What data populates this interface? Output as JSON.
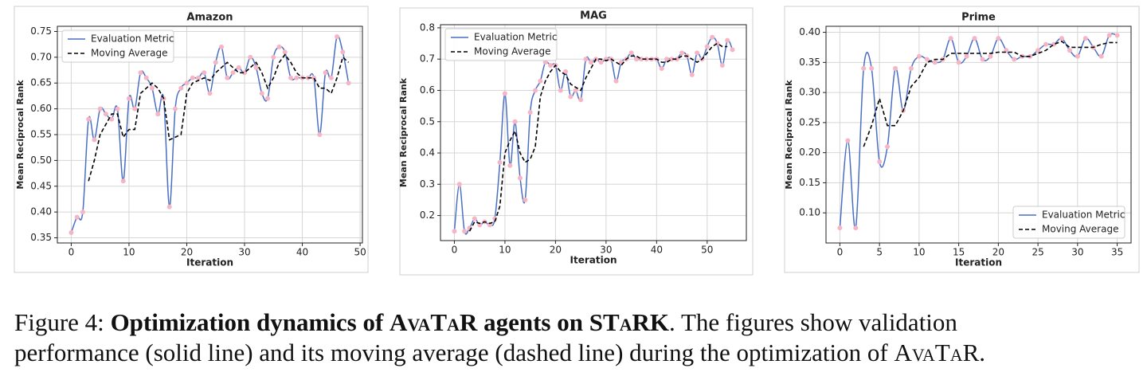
{
  "chart_data": [
    {
      "type": "line",
      "title": "Amazon",
      "xlabel": "Iteration",
      "ylabel": "Mean Reciprocal Rank",
      "x": [
        0,
        1,
        2,
        3,
        4,
        5,
        6,
        7,
        8,
        9,
        10,
        11,
        12,
        13,
        14,
        15,
        16,
        17,
        18,
        19,
        20,
        21,
        22,
        23,
        24,
        25,
        26,
        27,
        28,
        29,
        30,
        31,
        32,
        33,
        34,
        35,
        36,
        37,
        38,
        39,
        40,
        41,
        42,
        43,
        44,
        45,
        46,
        47,
        48
      ],
      "series": [
        {
          "name": "Evaluation Metric",
          "color": "#4a6fc4",
          "marker_color": "#f5b5c4",
          "values": [
            0.36,
            0.39,
            0.4,
            0.58,
            0.54,
            0.6,
            0.59,
            0.58,
            0.6,
            0.46,
            0.62,
            0.6,
            0.67,
            0.66,
            0.64,
            0.59,
            0.62,
            0.41,
            0.6,
            0.64,
            0.65,
            0.66,
            0.66,
            0.67,
            0.63,
            0.69,
            0.72,
            0.66,
            0.67,
            0.68,
            0.67,
            0.7,
            0.68,
            0.63,
            0.62,
            0.7,
            0.72,
            0.71,
            0.66,
            0.66,
            0.66,
            0.66,
            0.66,
            0.55,
            0.67,
            0.66,
            0.74,
            0.71,
            0.65
          ]
        },
        {
          "name": "Moving Average",
          "color": "#000000",
          "dashed": true,
          "values": [
            null,
            null,
            null,
            0.46,
            0.5,
            0.55,
            0.57,
            0.59,
            0.59,
            0.545,
            0.56,
            0.56,
            0.63,
            0.64,
            0.65,
            0.64,
            0.62,
            0.54,
            0.545,
            0.55,
            0.63,
            0.65,
            0.655,
            0.66,
            0.655,
            0.67,
            0.68,
            0.69,
            0.68,
            0.67,
            0.67,
            0.68,
            0.69,
            0.67,
            0.64,
            0.66,
            0.69,
            0.705,
            0.69,
            0.67,
            0.66,
            0.66,
            0.66,
            0.64,
            0.64,
            0.63,
            0.66,
            0.7,
            0.69
          ]
        }
      ],
      "xlim": [
        -2.4,
        50.4
      ],
      "xticks": [
        0,
        10,
        20,
        30,
        40,
        50
      ],
      "ylim": [
        0.34,
        0.76
      ],
      "yticks": [
        0.35,
        {
          "value": 0.4,
          "label": "0.40"
        },
        0.45,
        {
          "value": 0.5,
          "label": "0.50"
        },
        0.55,
        {
          "value": 0.6,
          "label": "0.60"
        },
        0.65,
        {
          "value": 0.7,
          "label": "0.70"
        },
        0.75
      ],
      "grid": true,
      "legend": "upper left"
    },
    {
      "type": "line",
      "title": "MAG",
      "xlabel": "Iteration",
      "ylabel": "Mean Reciprocal Rank",
      "x": [
        0,
        1,
        2,
        3,
        4,
        5,
        6,
        7,
        8,
        9,
        10,
        11,
        12,
        13,
        14,
        15,
        16,
        17,
        18,
        19,
        20,
        21,
        22,
        23,
        24,
        25,
        26,
        27,
        28,
        29,
        30,
        31,
        32,
        33,
        34,
        35,
        36,
        37,
        38,
        39,
        40,
        41,
        42,
        43,
        44,
        45,
        46,
        47,
        48,
        49,
        50,
        51,
        52,
        53,
        54,
        55
      ],
      "series": [
        {
          "name": "Evaluation Metric",
          "color": "#4a6fc4",
          "marker_color": "#f5b5c4",
          "values": [
            0.15,
            0.3,
            0.15,
            0.16,
            0.19,
            0.17,
            0.18,
            0.17,
            0.19,
            0.37,
            0.59,
            0.36,
            0.5,
            0.32,
            0.25,
            0.53,
            0.6,
            0.63,
            0.69,
            0.68,
            0.68,
            0.6,
            0.66,
            0.58,
            0.6,
            0.57,
            0.7,
            0.69,
            0.7,
            0.69,
            0.7,
            0.7,
            0.63,
            0.69,
            0.7,
            0.72,
            0.7,
            0.7,
            0.7,
            0.7,
            0.7,
            0.67,
            0.7,
            0.7,
            0.7,
            0.72,
            0.71,
            0.65,
            0.72,
            0.7,
            0.74,
            0.77,
            0.75,
            0.68,
            0.76,
            0.73
          ]
        },
        {
          "name": "Moving Average",
          "color": "#000000",
          "dashed": true,
          "values": [
            null,
            null,
            null,
            0.15,
            0.18,
            0.175,
            0.18,
            0.175,
            0.18,
            0.23,
            0.4,
            0.44,
            0.47,
            0.4,
            0.37,
            0.38,
            0.42,
            0.58,
            0.63,
            0.66,
            0.68,
            0.66,
            0.65,
            0.62,
            0.61,
            0.6,
            0.64,
            0.67,
            0.7,
            0.7,
            0.695,
            0.7,
            0.69,
            0.68,
            0.7,
            0.71,
            0.71,
            0.7,
            0.7,
            0.7,
            0.7,
            0.69,
            0.69,
            0.7,
            0.7,
            0.71,
            0.71,
            0.7,
            0.69,
            0.7,
            0.72,
            0.74,
            0.75,
            0.74,
            0.74,
            null
          ]
        }
      ],
      "xlim": [
        -2.75,
        57.75
      ],
      "xticks": [
        0,
        10,
        20,
        30,
        40,
        50
      ],
      "ylim": [
        0.12,
        0.81
      ],
      "yticks": [
        0.2,
        0.3,
        0.4,
        0.5,
        0.6,
        0.7,
        0.8
      ],
      "grid": true,
      "legend": "upper left"
    },
    {
      "type": "line",
      "title": "Prime",
      "xlabel": "Iteration",
      "ylabel": "Mean Reciprocal Rank",
      "x": [
        0,
        1,
        2,
        3,
        4,
        5,
        6,
        7,
        8,
        9,
        10,
        11,
        12,
        13,
        14,
        15,
        16,
        17,
        18,
        19,
        20,
        21,
        22,
        23,
        24,
        25,
        26,
        27,
        28,
        29,
        30,
        31,
        32,
        33,
        34,
        35
      ],
      "series": [
        {
          "name": "Evaluation Metric",
          "color": "#4a6fc4",
          "marker_color": "#f5b5c4",
          "values": [
            0.075,
            0.22,
            0.075,
            0.34,
            0.34,
            0.185,
            0.21,
            0.34,
            0.27,
            0.34,
            0.36,
            0.355,
            0.35,
            0.355,
            0.39,
            0.35,
            0.36,
            0.39,
            0.355,
            0.36,
            0.39,
            0.37,
            0.355,
            0.36,
            0.36,
            0.37,
            0.38,
            0.38,
            0.39,
            0.37,
            0.36,
            0.39,
            0.375,
            0.36,
            0.395,
            0.395
          ]
        },
        {
          "name": "Moving Average",
          "color": "#000000",
          "dashed": true,
          "values": [
            null,
            null,
            null,
            0.21,
            0.245,
            0.29,
            0.245,
            0.245,
            0.27,
            0.31,
            0.325,
            0.35,
            0.355,
            0.355,
            0.365,
            0.365,
            0.365,
            0.365,
            0.365,
            0.365,
            0.367,
            0.367,
            0.367,
            0.36,
            0.36,
            0.365,
            0.37,
            0.38,
            0.385,
            0.375,
            0.375,
            0.375,
            0.375,
            0.38,
            0.383,
            0.383
          ]
        }
      ],
      "xlim": [
        -1.75,
        36.75
      ],
      "xticks": [
        0,
        5,
        10,
        15,
        20,
        25,
        30,
        35
      ],
      "ylim": [
        0.05,
        0.41
      ],
      "yticks": [
        {
          "value": 0.1,
          "label": "0.10"
        },
        0.15,
        {
          "value": 0.2,
          "label": "0.20"
        },
        0.25,
        {
          "value": 0.3,
          "label": "0.30"
        },
        0.35,
        {
          "value": 0.4,
          "label": "0.40"
        }
      ],
      "grid": true,
      "legend": "lower right"
    }
  ],
  "caption": {
    "label": "Figure 4: ",
    "bold_start": "Optimization dynamics of ",
    "bold_name1": "AvaTaR",
    "bold_mid": " agents on ",
    "bold_name2": "STaRK",
    "text1": ". The figures show validation",
    "text2": "performance (solid line) and its moving average (dashed line) during the optimization of ",
    "name": "AvaTaR",
    "end": "."
  }
}
